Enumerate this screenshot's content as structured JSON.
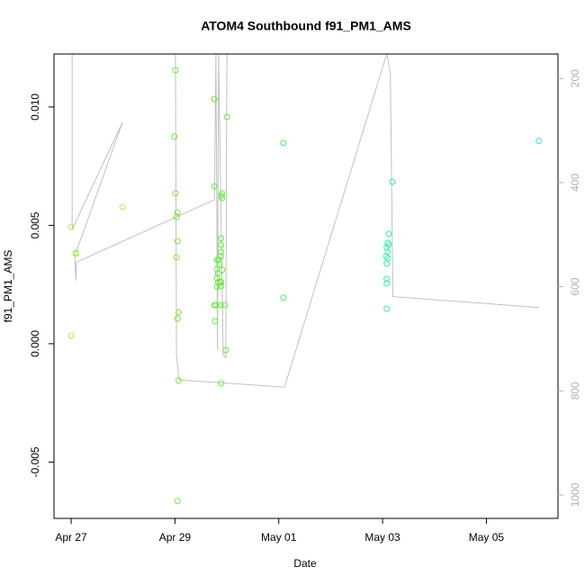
{
  "chart_data": {
    "type": "scatter",
    "title": "ATOM4 Southbound f91_PM1_AMS",
    "x_label": "Date",
    "y_label": "f91_PM1_AMS",
    "xlim": [
      -0.33,
      9.38
    ],
    "xticks": [
      {
        "value": 0,
        "label": "Apr 27"
      },
      {
        "value": 2,
        "label": "Apr 29"
      },
      {
        "value": 4,
        "label": "May 01"
      },
      {
        "value": 6,
        "label": "May 03"
      },
      {
        "value": 8,
        "label": "May 05"
      }
    ],
    "ylim": [
      -0.00738,
      0.01224
    ],
    "yticks": [
      {
        "value": -0.005,
        "label": "-0.005"
      },
      {
        "value": 0,
        "label": "0.000"
      },
      {
        "value": 0.005,
        "label": "0.005"
      },
      {
        "value": 0.01,
        "label": "0.010"
      }
    ],
    "y2lim": [
      1045,
      153
    ],
    "y2ticks": [
      200,
      400,
      600,
      800,
      1000
    ],
    "x": [
      0.0,
      0.0,
      0.09,
      0.09,
      0.99,
      2.01,
      1.99,
      2.01,
      2.05,
      2.03,
      2.05,
      2.03,
      2.07,
      2.05,
      2.07,
      2.05,
      2.76,
      2.76,
      2.76,
      2.77,
      2.81,
      2.81,
      2.83,
      2.81,
      2.83,
      2.81,
      2.84,
      2.86,
      2.89,
      2.89,
      2.89,
      2.89,
      2.91,
      2.91,
      2.89,
      2.88,
      2.89,
      2.89,
      2.91,
      2.79,
      2.88,
      2.96,
      3.0,
      2.98,
      2.89,
      4.09,
      4.09,
      6.19,
      6.12,
      6.1,
      6.08,
      6.1,
      6.07,
      6.08,
      6.1,
      6.12,
      6.08,
      6.08,
      6.08,
      9.01
    ],
    "values": [
      0.00494,
      0.00034,
      0.00384,
      0.0038,
      0.00578,
      0.01156,
      0.00875,
      0.00635,
      0.00555,
      0.00536,
      0.00433,
      0.00365,
      0.00133,
      0.00106,
      -0.00156,
      -0.00665,
      0.01034,
      0.00665,
      0.00163,
      0.00095,
      0.00354,
      0.00316,
      0.00297,
      0.00278,
      0.00259,
      0.0024,
      0.00354,
      0.00335,
      0.00418,
      0.00388,
      0.00369,
      0.00445,
      0.00616,
      0.00635,
      0.00624,
      0.00262,
      0.00243,
      0.00259,
      0.00312,
      0.00163,
      0.00163,
      0.00163,
      0.00958,
      -0.00027,
      -0.00167,
      0.00848,
      0.00194,
      0.00684,
      0.00464,
      0.00426,
      0.00407,
      0.00388,
      0.00369,
      0.00338,
      0.00361,
      0.00418,
      0.00274,
      0.00255,
      0.00148,
      0.00856
    ],
    "colors": [
      "#a8f03c",
      "#a8f03c",
      "#a0f03c",
      "#a0f03c",
      "#b4ee40",
      "#70ee30",
      "#70ee30",
      "#70ee30",
      "#70ee30",
      "#70ee30",
      "#70ee30",
      "#70ee30",
      "#70ee30",
      "#70ee30",
      "#70ee30",
      "#70ee30",
      "#5ef030",
      "#5ef030",
      "#5ef030",
      "#5ef030",
      "#5ef030",
      "#5ef030",
      "#5ef030",
      "#5ef030",
      "#5ef030",
      "#5ef030",
      "#5ef030",
      "#5ef030",
      "#5ef030",
      "#5ef030",
      "#5ef030",
      "#5ef030",
      "#5ef030",
      "#5ef030",
      "#5ef030",
      "#5ef030",
      "#5ef030",
      "#5ef030",
      "#5ef030",
      "#5ef030",
      "#5ef030",
      "#5ef030",
      "#5ef030",
      "#5ef030",
      "#5ef030",
      "#48f060",
      "#48f060",
      "#30f0a0",
      "#30f0b0",
      "#30f0b0",
      "#30f0b0",
      "#30f0b0",
      "#30f0b0",
      "#30f0b0",
      "#30f0b0",
      "#30f0b0",
      "#30f0b0",
      "#30f0b0",
      "#30f0b0",
      "#30e8d8"
    ],
    "line": {
      "axis": "y2",
      "color": "#c0c0c0",
      "x": [
        0.02,
        0.02,
        0.99,
        0.07,
        0.09,
        0.1,
        2.76,
        2.79,
        2.82,
        2.84,
        2.93,
        2.98,
        3.0,
        2.01,
        2.03,
        2.08,
        4.11,
        6.08,
        6.15,
        6.2,
        9.01
      ],
      "values": [
        153,
        490,
        284,
        541,
        588,
        553,
        433,
        153,
        722,
        153,
        731,
        736,
        153,
        153,
        731,
        779,
        793,
        153,
        188,
        619,
        640
      ]
    }
  }
}
